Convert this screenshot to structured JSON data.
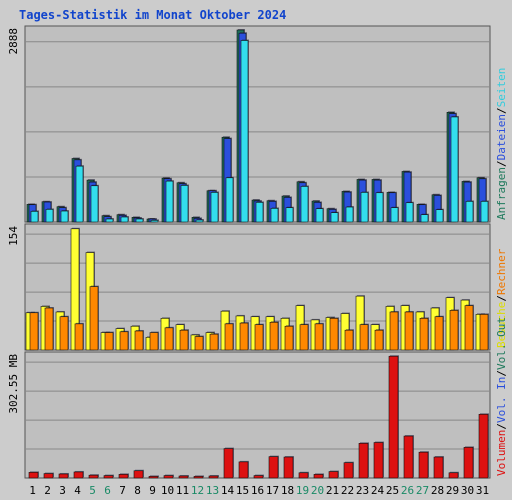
{
  "chart_data": {
    "type": "bar",
    "title": "Tages-Statistik im Monat Oktober 2024",
    "categories": [
      "1",
      "2",
      "3",
      "4",
      "5",
      "6",
      "7",
      "8",
      "9",
      "10",
      "11",
      "12",
      "13",
      "14",
      "15",
      "16",
      "17",
      "18",
      "19",
      "20",
      "21",
      "22",
      "23",
      "24",
      "25",
      "26",
      "27",
      "28",
      "29",
      "30",
      "31"
    ],
    "weekend_days": [
      "5",
      "6",
      "12",
      "13",
      "19",
      "20",
      "26",
      "27"
    ],
    "panels": [
      {
        "id": "top",
        "max_label": "2888",
        "ylim": [
          0,
          2888
        ],
        "series": [
          {
            "name": "Anfragen",
            "color": "#1f6f5c",
            "values": [
              265,
              305,
              230,
              955,
              630,
              95,
              110,
              70,
              45,
              660,
              590,
              70,
              470,
              1275,
              2888,
              330,
              320,
              390,
              605,
              315,
              200,
              460,
              640,
              640,
              445,
              760,
              265,
              410,
              1650,
              610,
              665
            ]
          },
          {
            "name": "Dateien",
            "color": "#2a4fdc",
            "values": [
              260,
              300,
              215,
              935,
              600,
              80,
              100,
              60,
              45,
              650,
              575,
              55,
              470,
              1255,
              2840,
              315,
              310,
              370,
              590,
              295,
              190,
              450,
              630,
              630,
              440,
              750,
              260,
              400,
              1630,
              600,
              650
            ]
          },
          {
            "name": "Seiten",
            "color": "#33ddee",
            "values": [
              160,
              190,
              165,
              840,
              545,
              45,
              75,
              45,
              25,
              615,
              550,
              30,
              445,
              665,
              2730,
              295,
              205,
              215,
              535,
              200,
              140,
              225,
              445,
              440,
              215,
              290,
              110,
              185,
              1580,
              310,
              310
            ]
          }
        ],
        "axis_label": [
          "Anfragen",
          "Dateien",
          "Seiten"
        ]
      },
      {
        "id": "middle",
        "max_label": "154",
        "ylim": [
          0,
          154
        ],
        "series": [
          {
            "name": "Besuche",
            "color": "#ffff33",
            "values": [
              47,
              55,
              48,
              153,
              123,
              22,
              27,
              30,
              16,
              40,
              32,
              19,
              22,
              49,
              43,
              42,
              42,
              40,
              56,
              38,
              41,
              46,
              68,
              32,
              55,
              56,
              48,
              53,
              66,
              63,
              45
            ]
          },
          {
            "name": "Rechner",
            "color": "#ff8800",
            "values": [
              47,
              53,
              42,
              33,
              80,
              22,
              23,
              24,
              22,
              28,
              25,
              17,
              20,
              33,
              34,
              32,
              35,
              30,
              32,
              33,
              40,
              25,
              32,
              25,
              48,
              48,
              40,
              42,
              50,
              56,
              45
            ]
          }
        ],
        "axis_label": [
          "Besuche",
          "Rechner"
        ]
      },
      {
        "id": "bottom",
        "max_label": "302.55 MB",
        "ylim": [
          0,
          302.55
        ],
        "series": [
          {
            "name": "Volumen",
            "color": "#dd1111",
            "values": [
              14,
              11,
              10,
              15,
              7,
              6,
              9,
              18,
              4,
              6,
              5,
              4,
              5,
              73,
              40,
              6,
              53,
              52,
              13,
              9,
              16,
              38,
              86,
              88,
              302,
              104,
              64,
              52,
              13,
              76,
              158
            ]
          }
        ],
        "axis_label": [
          "Volumen",
          "Vol. In",
          "Vol. Out"
        ]
      }
    ]
  }
}
